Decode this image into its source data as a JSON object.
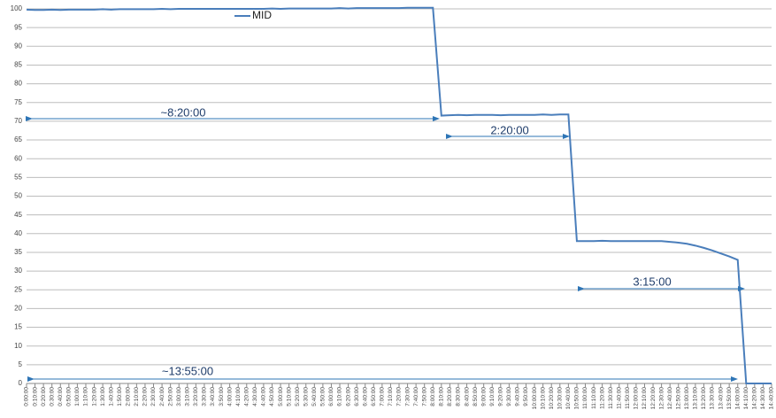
{
  "chart_data": {
    "type": "line",
    "categories": [
      "0:00:00",
      "0:10:00",
      "0:20:00",
      "0:30:00",
      "0:40:00",
      "0:50:00",
      "1:00:00",
      "1:10:00",
      "1:20:00",
      "1:30:00",
      "1:40:00",
      "1:50:00",
      "2:00:00",
      "2:10:00",
      "2:20:00",
      "2:30:00",
      "2:40:00",
      "2:50:00",
      "3:00:00",
      "3:10:00",
      "3:20:00",
      "3:30:00",
      "3:40:00",
      "3:50:00",
      "4:00:00",
      "4:10:00",
      "4:20:00",
      "4:30:00",
      "4:40:00",
      "4:50:00",
      "5:00:00",
      "5:10:00",
      "5:20:00",
      "5:30:00",
      "5:40:00",
      "5:50:00",
      "6:00:00",
      "6:10:00",
      "6:20:00",
      "6:30:00",
      "6:40:00",
      "6:50:00",
      "7:00:00",
      "7:10:00",
      "7:20:00",
      "7:30:00",
      "7:40:00",
      "7:50:00",
      "8:00:00",
      "8:10:00",
      "8:20:00",
      "8:30:00",
      "8:40:00",
      "8:50:00",
      "9:00:00",
      "9:10:00",
      "9:20:00",
      "9:30:00",
      "9:40:00",
      "9:50:00",
      "10:00:00",
      "10:10:00",
      "10:20:00",
      "10:30:00",
      "10:40:00",
      "10:50:00",
      "11:00:00",
      "11:10:00",
      "11:20:00",
      "11:30:00",
      "11:40:00",
      "11:50:00",
      "12:00:00",
      "12:10:00",
      "12:20:00",
      "12:30:00",
      "12:40:00",
      "12:50:00",
      "13:00:00",
      "13:10:00",
      "13:20:00",
      "13:30:00",
      "13:40:00",
      "13:50:00",
      "14:00:00",
      "14:10:00",
      "14:20:00",
      "14:30:00",
      "14:40:00"
    ],
    "series": [
      {
        "name": "MID",
        "color": "#4a7ebb",
        "values": [
          99.8,
          99.7,
          99.7,
          99.8,
          99.7,
          99.8,
          99.8,
          99.8,
          99.8,
          99.9,
          99.8,
          99.9,
          99.9,
          99.9,
          99.9,
          99.9,
          100,
          99.9,
          100,
          100,
          100,
          100,
          100,
          100,
          100,
          100,
          100,
          100,
          100,
          100.1,
          100,
          100.1,
          100.1,
          100.1,
          100.1,
          100.1,
          100.1,
          100.2,
          100.1,
          100.2,
          100.2,
          100.2,
          100.2,
          100.2,
          100.2,
          100.3,
          100.3,
          100.3,
          100.3,
          71.5,
          71.6,
          71.7,
          71.6,
          71.7,
          71.7,
          71.7,
          71.6,
          71.7,
          71.7,
          71.7,
          71.7,
          71.8,
          71.7,
          71.8,
          71.8,
          38,
          38,
          38,
          38.1,
          38,
          38,
          38,
          38,
          38,
          38,
          38,
          37.8,
          37.6,
          37.3,
          36.8,
          36.2,
          35.5,
          34.7,
          33.9,
          33,
          0,
          0,
          0,
          0
        ]
      }
    ],
    "ylim": [
      0,
      100
    ],
    "yticks": [
      0,
      5,
      10,
      15,
      20,
      25,
      30,
      35,
      40,
      45,
      50,
      55,
      60,
      65,
      70,
      75,
      80,
      85,
      90,
      95,
      100
    ],
    "grid": true,
    "legend": "top",
    "annotations": [
      "~8:20:00",
      "2:20:00",
      "3:15:00",
      "~13:55:00"
    ]
  }
}
